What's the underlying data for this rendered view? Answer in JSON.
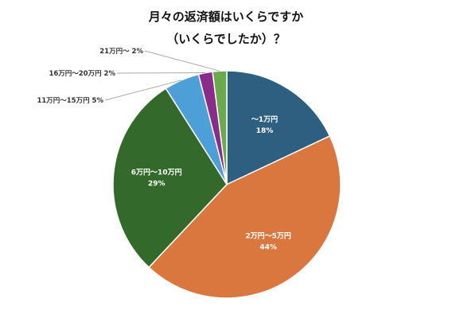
{
  "chart_data": {
    "type": "pie",
    "title_line1": "月々の返済額はいくらですか",
    "title_line2": "（いくらでしたか）？",
    "slices": [
      {
        "label": "〜1万円",
        "value": 18,
        "pct_label": "18%",
        "color": "#2e5e80"
      },
      {
        "label": "2万円〜5万円",
        "value": 44,
        "pct_label": "44%",
        "color": "#d9773f"
      },
      {
        "label": "6万円〜10万円",
        "value": 29,
        "pct_label": "29%",
        "color": "#336a2c"
      },
      {
        "label": "11万円〜15万円",
        "value": 5,
        "pct_label": "5%",
        "color": "#4d9fd7"
      },
      {
        "label": "16万円〜20万円",
        "value": 2,
        "pct_label": "2%",
        "color": "#8a2c8c"
      },
      {
        "label": "21万円〜",
        "value": 2,
        "pct_label": "2%",
        "color": "#6aaa4d"
      }
    ]
  }
}
